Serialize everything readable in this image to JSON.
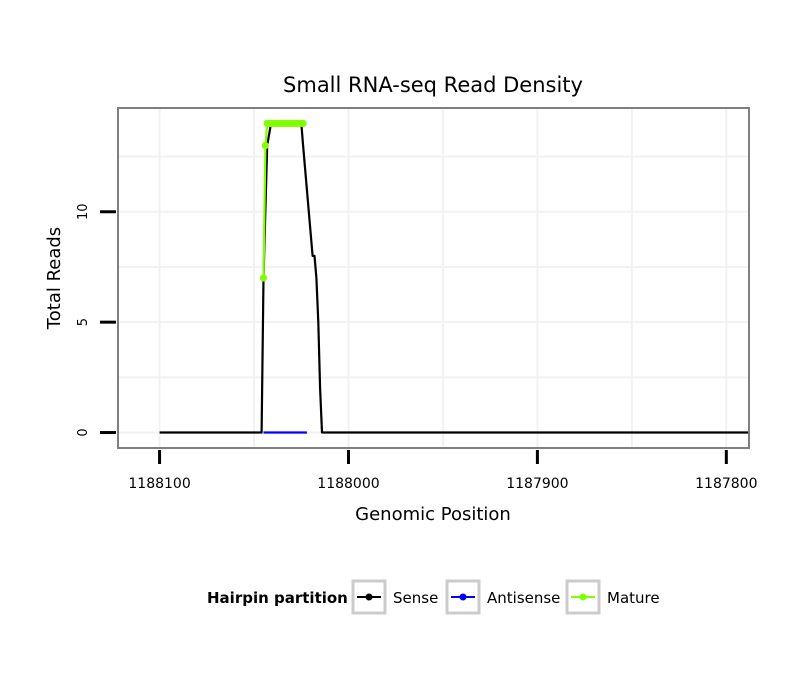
{
  "chart_data": {
    "type": "line",
    "title": "Small RNA-seq Read Density",
    "xlabel": "Genomic Position",
    "ylabel": "Total Reads",
    "x_reversed": true,
    "xlim": [
      1188122,
      1187788
    ],
    "ylim": [
      -0.7,
      14.7
    ],
    "x_ticks": [
      1188100,
      1188000,
      1187900,
      1187800
    ],
    "x_tick_labels": [
      "1188100",
      "1188000",
      "1187900",
      "1187800"
    ],
    "y_ticks": [
      0,
      5,
      10
    ],
    "y_tick_labels": [
      "0",
      "5",
      "10"
    ],
    "legend": {
      "title": "Hairpin partition",
      "position": "bottom",
      "entries": [
        {
          "label": "Sense",
          "color": "#000000"
        },
        {
          "label": "Antisense",
          "color": "#0000ff"
        },
        {
          "label": "Mature",
          "color": "#80ff00"
        }
      ]
    },
    "series": [
      {
        "name": "Sense",
        "color": "#000000",
        "x": [
          1188100,
          1188046,
          1188045,
          1188043,
          1188041,
          1188040,
          1188039,
          1188038,
          1188037,
          1188036,
          1188035,
          1188034,
          1188033,
          1188032,
          1188031,
          1188030,
          1188029,
          1188028,
          1188027,
          1188026,
          1188025,
          1188024,
          1188023,
          1188022,
          1188021,
          1188020,
          1188019,
          1188018,
          1188017,
          1188016,
          1188015,
          1188014,
          1188013,
          1188012,
          1188011,
          1188010,
          1188009,
          1188008,
          1188007,
          1188006,
          1188005,
          1188004,
          1188003,
          1188002,
          1187788
        ],
        "values": [
          0,
          0,
          7,
          13,
          14,
          14,
          14,
          14,
          14,
          14,
          14,
          14,
          14,
          14,
          14,
          14,
          14,
          14,
          14,
          14,
          14,
          13,
          12,
          11,
          10,
          9,
          8,
          8,
          7,
          5,
          2,
          0,
          0,
          0,
          0,
          0,
          0,
          0,
          0,
          0,
          0,
          0,
          0,
          0,
          0
        ]
      },
      {
        "name": "Antisense",
        "color": "#0000ff",
        "x": [
          1188045,
          1188022
        ],
        "values": [
          0,
          0
        ]
      },
      {
        "name": "Mature",
        "color": "#80ff00",
        "x": [
          1188045,
          1188044,
          1188043,
          1188042,
          1188041,
          1188040,
          1188039,
          1188038,
          1188037,
          1188036,
          1188035,
          1188034,
          1188033,
          1188032,
          1188031,
          1188030,
          1188029,
          1188028,
          1188027,
          1188026,
          1188025,
          1188024
        ],
        "values": [
          7,
          13,
          14,
          14,
          14,
          14,
          14,
          14,
          14,
          14,
          14,
          14,
          14,
          14,
          14,
          14,
          14,
          14,
          14,
          14,
          14,
          14
        ]
      }
    ]
  }
}
